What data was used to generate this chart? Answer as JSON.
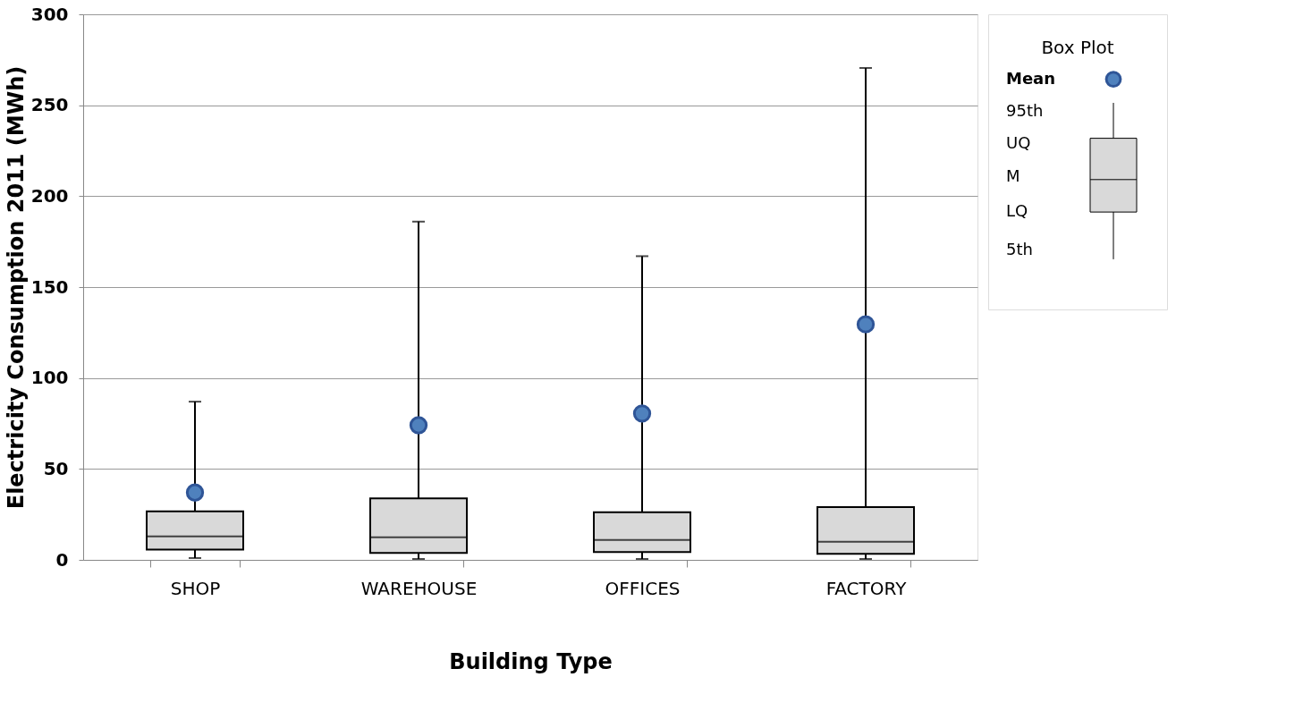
{
  "chart_data": {
    "type": "box",
    "xlabel": "Building Type",
    "ylabel": "Electricity Consumption 2011 (MWh)",
    "categories": [
      "SHOP",
      "WAREHOUSE",
      "OFFICES",
      "FACTORY"
    ],
    "boxes": [
      {
        "low": 1,
        "q1": 5.7,
        "median": 12.9,
        "q3": 26.7,
        "high": 87,
        "mean": 37
      },
      {
        "low": 0.5,
        "q1": 3.8,
        "median": 12.4,
        "q3": 33.8,
        "high": 186,
        "mean": 74
      },
      {
        "low": 0.5,
        "q1": 4.3,
        "median": 11,
        "q3": 26.2,
        "high": 167,
        "mean": 80.5
      },
      {
        "low": 0.5,
        "q1": 3.3,
        "median": 10,
        "q3": 29,
        "high": 270.5,
        "mean": 129.5
      }
    ],
    "color": "#d9d9d9",
    "ylim": [
      0,
      300
    ],
    "yticks": [
      0,
      50,
      100,
      150,
      200,
      250,
      300
    ],
    "grid": "y",
    "legend_title": "Box Plot",
    "annotations": [
      "Mean",
      "95th",
      "UQ",
      "M",
      "LQ",
      "5th"
    ]
  }
}
